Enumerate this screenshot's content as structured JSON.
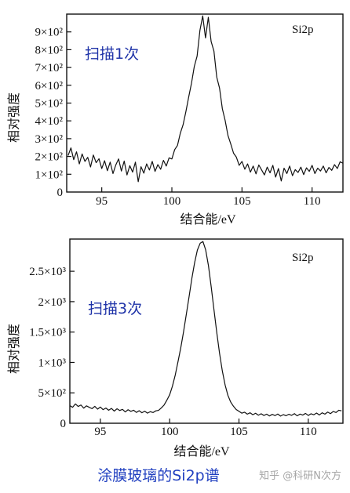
{
  "figure": {
    "caption": "涂膜玻璃的Si2p谱",
    "watermark": "知乎 @科研N次方"
  },
  "colors": {
    "background": "#ffffff",
    "ink": "#111111",
    "annotation": "#1f33a8",
    "caption": "#2140c0",
    "watermark": "#a6a6a6"
  },
  "chart_data": [
    {
      "type": "line",
      "label": "Si2p",
      "annotation": "扫描1次",
      "xlabel": "结合能/eV",
      "ylabel": "相对强度",
      "xlim": [
        92.5,
        112.2
      ],
      "ylim": [
        0,
        1000
      ],
      "x_ticks": [
        95,
        100,
        105,
        110
      ],
      "x_tick_labels": [
        "95",
        "100",
        "105",
        "110"
      ],
      "y_ticks": [
        0,
        100,
        200,
        300,
        400,
        500,
        600,
        700,
        800,
        900
      ],
      "y_tick_labels": [
        "0",
        "1×10²",
        "2×10²",
        "3×10²",
        "4×10²",
        "5×10²",
        "6×10²",
        "7×10²",
        "8×10²",
        "9×10²"
      ],
      "grid": false,
      "series": [
        {
          "x": [
            92.6,
            92.8,
            93.0,
            93.2,
            93.4,
            93.6,
            93.8,
            94.0,
            94.2,
            94.4,
            94.6,
            94.8,
            95.0,
            95.2,
            95.4,
            95.6,
            95.8,
            96.0,
            96.2,
            96.4,
            96.6,
            96.8,
            97.0,
            97.2,
            97.4,
            97.6,
            97.8,
            98.0,
            98.2,
            98.4,
            98.6,
            98.8,
            99.0,
            99.2,
            99.4,
            99.6,
            99.8,
            100.0,
            100.2,
            100.4,
            100.6,
            100.8,
            101.0,
            101.2,
            101.4,
            101.6,
            101.8,
            102.0,
            102.2,
            102.4,
            102.6,
            102.8,
            103.0,
            103.2,
            103.4,
            103.6,
            103.8,
            104.0,
            104.2,
            104.4,
            104.6,
            104.8,
            105.0,
            105.2,
            105.4,
            105.6,
            105.8,
            106.0,
            106.2,
            106.4,
            106.6,
            106.8,
            107.0,
            107.2,
            107.4,
            107.6,
            107.8,
            108.0,
            108.2,
            108.4,
            108.6,
            108.8,
            109.0,
            109.2,
            109.4,
            109.6,
            109.8,
            110.0,
            110.2,
            110.4,
            110.6,
            110.8,
            111.0,
            111.2,
            111.4,
            111.6,
            111.8,
            112.0,
            112.2
          ],
          "y": [
            205,
            248,
            182,
            226,
            158,
            214,
            172,
            195,
            141,
            208,
            165,
            187,
            132,
            176,
            120,
            168,
            104,
            152,
            186,
            118,
            174,
            96,
            148,
            112,
            168,
            58,
            142,
            106,
            158,
            124,
            172,
            116,
            154,
            128,
            178,
            146,
            192,
            186,
            238,
            262,
            330,
            378,
            452,
            534,
            612,
            706,
            764,
            908,
            990,
            866,
            982,
            846,
            792,
            646,
            584,
            468,
            402,
            318,
            270,
            218,
            196,
            150,
            172,
            128,
            158,
            112,
            146,
            102,
            152,
            124,
            96,
            140,
            108,
            150,
            84,
            132,
            62,
            134,
            104,
            146,
            92,
            126,
            110,
            140,
            98,
            136,
            116,
            150,
            104,
            134,
            118,
            146,
            108,
            138,
            122,
            154,
            132,
            170,
            162
          ]
        }
      ]
    },
    {
      "type": "line",
      "label": "Si2p",
      "annotation": "扫描3次",
      "xlabel": "结合能/eV",
      "ylabel": "相对强度",
      "xlim": [
        92.8,
        112.5
      ],
      "ylim": [
        0,
        3030
      ],
      "x_ticks": [
        95,
        100,
        105,
        110
      ],
      "x_tick_labels": [
        "95",
        "100",
        "105",
        "110"
      ],
      "y_ticks": [
        0,
        500,
        1000,
        1500,
        2000,
        2500
      ],
      "y_tick_labels": [
        "0",
        "5×10²",
        "1×10³",
        "1.5×10³",
        "2×10³",
        "2.5×10³"
      ],
      "grid": false,
      "series": [
        {
          "x": [
            92.8,
            93.0,
            93.2,
            93.4,
            93.6,
            93.8,
            94.0,
            94.2,
            94.4,
            94.6,
            94.8,
            95.0,
            95.2,
            95.4,
            95.6,
            95.8,
            96.0,
            96.2,
            96.4,
            96.6,
            96.8,
            97.0,
            97.2,
            97.4,
            97.6,
            97.8,
            98.0,
            98.2,
            98.4,
            98.6,
            98.8,
            99.0,
            99.2,
            99.4,
            99.6,
            99.8,
            100.0,
            100.2,
            100.4,
            100.6,
            100.8,
            101.0,
            101.2,
            101.4,
            101.6,
            101.8,
            102.0,
            102.2,
            102.4,
            102.6,
            102.8,
            103.0,
            103.2,
            103.4,
            103.6,
            103.8,
            104.0,
            104.2,
            104.4,
            104.6,
            104.8,
            105.0,
            105.2,
            105.4,
            105.6,
            105.8,
            106.0,
            106.2,
            106.4,
            106.6,
            106.8,
            107.0,
            107.2,
            107.4,
            107.6,
            107.8,
            108.0,
            108.2,
            108.4,
            108.6,
            108.8,
            109.0,
            109.2,
            109.4,
            109.6,
            109.8,
            110.0,
            110.2,
            110.4,
            110.6,
            110.8,
            111.0,
            111.2,
            111.4,
            111.6,
            111.8,
            112.0,
            112.2,
            112.4
          ],
          "y": [
            290,
            262,
            318,
            276,
            300,
            248,
            286,
            262,
            240,
            278,
            232,
            266,
            224,
            250,
            214,
            244,
            200,
            238,
            210,
            228,
            186,
            222,
            196,
            214,
            178,
            206,
            172,
            198,
            166,
            190,
            176,
            204,
            212,
            252,
            300,
            380,
            468,
            610,
            790,
            1010,
            1240,
            1500,
            1790,
            2080,
            2380,
            2640,
            2850,
            2960,
            2990,
            2850,
            2590,
            2240,
            1860,
            1490,
            1150,
            860,
            630,
            460,
            350,
            280,
            226,
            196,
            166,
            182,
            150,
            172,
            140,
            164,
            132,
            156,
            128,
            150,
            120,
            146,
            126,
            152,
            118,
            142,
            124,
            148,
            130,
            158,
            122,
            150,
            134,
            162,
            128,
            156,
            140,
            168,
            136,
            172,
            150,
            184,
            158,
            194,
            176,
            214,
            204
          ]
        }
      ]
    }
  ]
}
